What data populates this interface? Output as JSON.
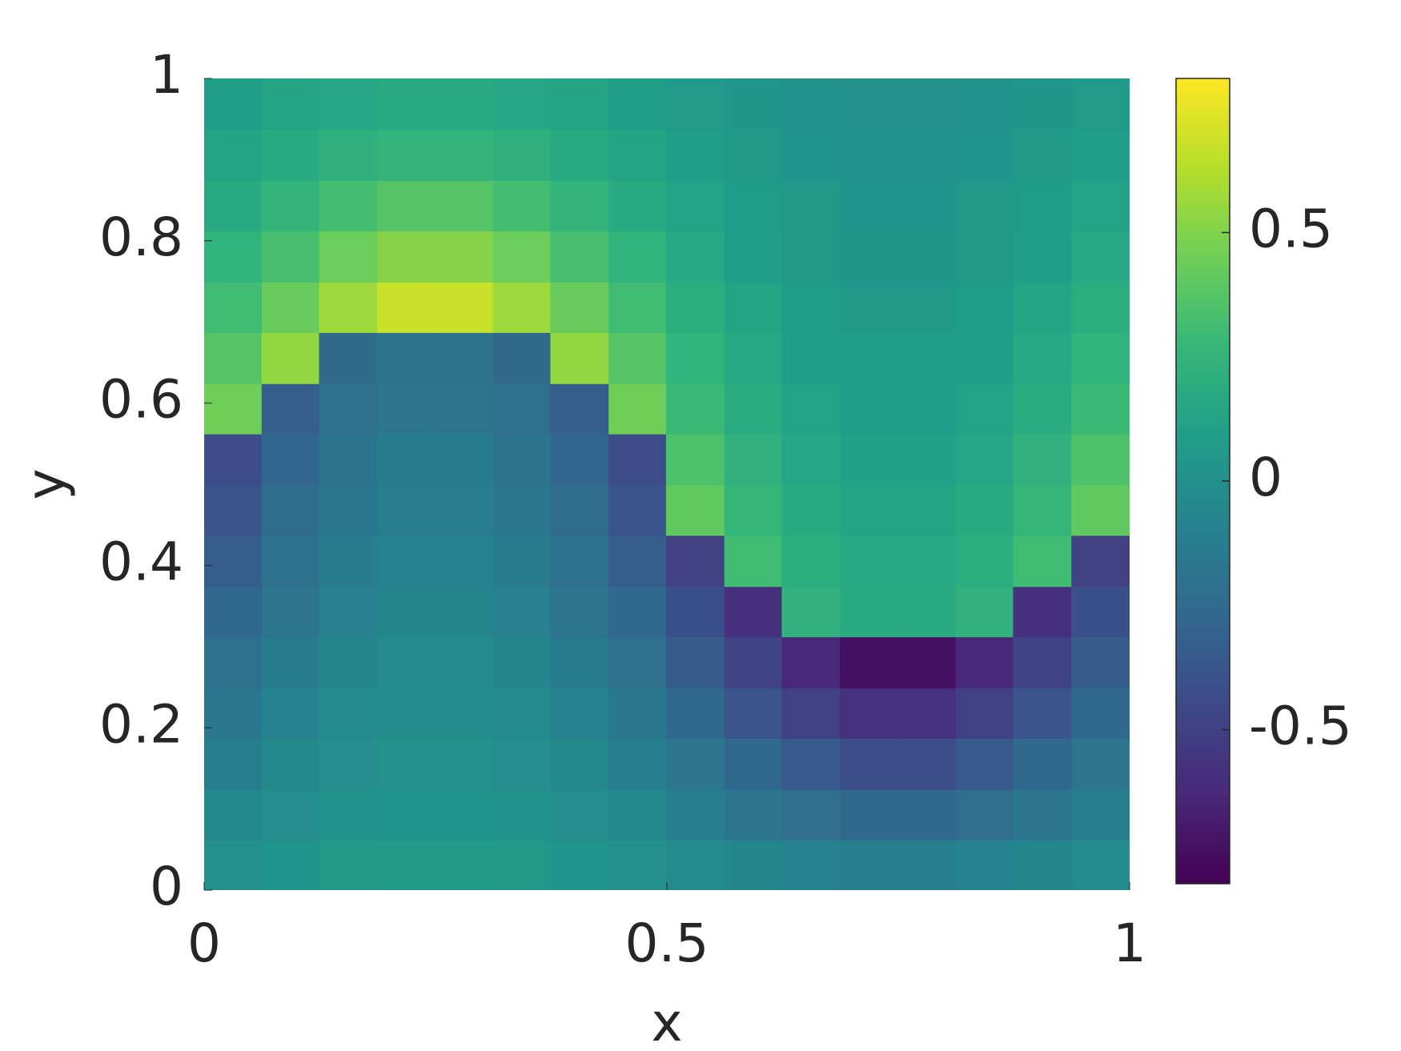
{
  "chart_data": {
    "type": "heatmap",
    "x_label": "x",
    "y_label": "y",
    "x": [
      0.031,
      0.094,
      0.156,
      0.219,
      0.281,
      0.344,
      0.406,
      0.469,
      0.531,
      0.594,
      0.656,
      0.719,
      0.781,
      0.844,
      0.906,
      0.969
    ],
    "y": [
      0.031,
      0.094,
      0.156,
      0.219,
      0.281,
      0.344,
      0.406,
      0.469,
      0.531,
      0.594,
      0.656,
      0.719,
      0.781,
      0.844,
      0.906,
      0.969
    ],
    "z": [
      [
        0,
        0.03,
        0.05,
        0.06,
        0.06,
        0.05,
        0.03,
        0,
        -0.03,
        -0.06,
        -0.09,
        -0.11,
        -0.11,
        -0.09,
        -0.06,
        -0.03
      ],
      [
        -0.05,
        -0.01,
        0.02,
        0.03,
        0.03,
        0.02,
        -0.01,
        -0.05,
        -0.11,
        -0.17,
        -0.23,
        -0.27,
        -0.27,
        -0.23,
        -0.17,
        -0.11
      ],
      [
        -0.11,
        -0.05,
        -0.01,
        0.01,
        0.01,
        -0.01,
        -0.05,
        -0.11,
        -0.18,
        -0.27,
        -0.36,
        -0.42,
        -0.42,
        -0.36,
        -0.27,
        -0.18
      ],
      [
        -0.16,
        -0.09,
        -0.04,
        -0.02,
        -0.02,
        -0.04,
        -0.09,
        -0.16,
        -0.26,
        -0.38,
        -0.5,
        -0.58,
        -0.58,
        -0.5,
        -0.38,
        -0.26
      ],
      [
        -0.22,
        -0.13,
        -0.07,
        -0.04,
        -0.04,
        -0.07,
        -0.13,
        -0.22,
        -0.34,
        -0.48,
        -0.63,
        -0.74,
        -0.74,
        -0.63,
        -0.48,
        -0.34
      ],
      [
        -0.27,
        -0.17,
        -0.1,
        -0.07,
        -0.07,
        -0.1,
        -0.17,
        -0.27,
        -0.41,
        -0.59,
        0.23,
        0.18,
        0.18,
        0.23,
        -0.59,
        -0.41
      ],
      [
        -0.33,
        -0.21,
        -0.13,
        -0.09,
        -0.09,
        -0.13,
        -0.21,
        -0.33,
        -0.49,
        0.3,
        0.2,
        0.16,
        0.16,
        0.2,
        0.3,
        -0.49
      ],
      [
        -0.38,
        -0.24,
        -0.16,
        -0.12,
        -0.12,
        -0.16,
        -0.24,
        -0.38,
        0.41,
        0.26,
        0.18,
        0.13,
        0.13,
        0.18,
        0.26,
        0.41
      ],
      [
        -0.43,
        -0.28,
        -0.19,
        -0.14,
        -0.14,
        -0.19,
        -0.28,
        -0.43,
        0.35,
        0.23,
        0.15,
        0.11,
        0.11,
        0.15,
        0.23,
        0.35
      ],
      [
        0.45,
        -0.32,
        -0.22,
        -0.17,
        -0.17,
        -0.22,
        -0.32,
        0.45,
        0.29,
        0.19,
        0.12,
        0.09,
        0.09,
        0.12,
        0.19,
        0.29
      ],
      [
        0.37,
        0.54,
        -0.25,
        -0.19,
        -0.19,
        -0.25,
        0.54,
        0.37,
        0.24,
        0.16,
        0.1,
        0.08,
        0.08,
        0.1,
        0.16,
        0.24
      ],
      [
        0.3,
        0.43,
        0.57,
        0.68,
        0.68,
        0.57,
        0.43,
        0.3,
        0.2,
        0.13,
        0.08,
        0.06,
        0.06,
        0.08,
        0.13,
        0.2
      ],
      [
        0.24,
        0.33,
        0.44,
        0.51,
        0.51,
        0.44,
        0.33,
        0.24,
        0.16,
        0.1,
        0.06,
        0.04,
        0.04,
        0.06,
        0.1,
        0.16
      ],
      [
        0.18,
        0.25,
        0.32,
        0.37,
        0.37,
        0.32,
        0.25,
        0.18,
        0.12,
        0.08,
        0.05,
        0.03,
        0.03,
        0.05,
        0.08,
        0.12
      ],
      [
        0.13,
        0.18,
        0.22,
        0.25,
        0.25,
        0.22,
        0.18,
        0.13,
        0.09,
        0.06,
        0.03,
        0.02,
        0.02,
        0.03,
        0.06,
        0.09
      ],
      [
        0.1,
        0.13,
        0.15,
        0.17,
        0.17,
        0.15,
        0.13,
        0.1,
        0.07,
        0.04,
        0.02,
        0.01,
        0.01,
        0.02,
        0.04,
        0.07
      ]
    ],
    "xlim": [
      0,
      1
    ],
    "xticks": [
      0,
      0.5,
      1
    ],
    "ylim": [
      0,
      1
    ],
    "yticks": [
      0,
      0.2,
      0.4,
      0.6,
      0.8,
      1
    ],
    "clim": [
      -0.81,
      0.81
    ],
    "cticks": [
      -0.5,
      0,
      0.5
    ],
    "colormap": [
      "#440154",
      "#482878",
      "#3e4989",
      "#31688e",
      "#26828e",
      "#1f9e89",
      "#35b779",
      "#6ece58",
      "#b5de2b",
      "#fde725"
    ]
  }
}
